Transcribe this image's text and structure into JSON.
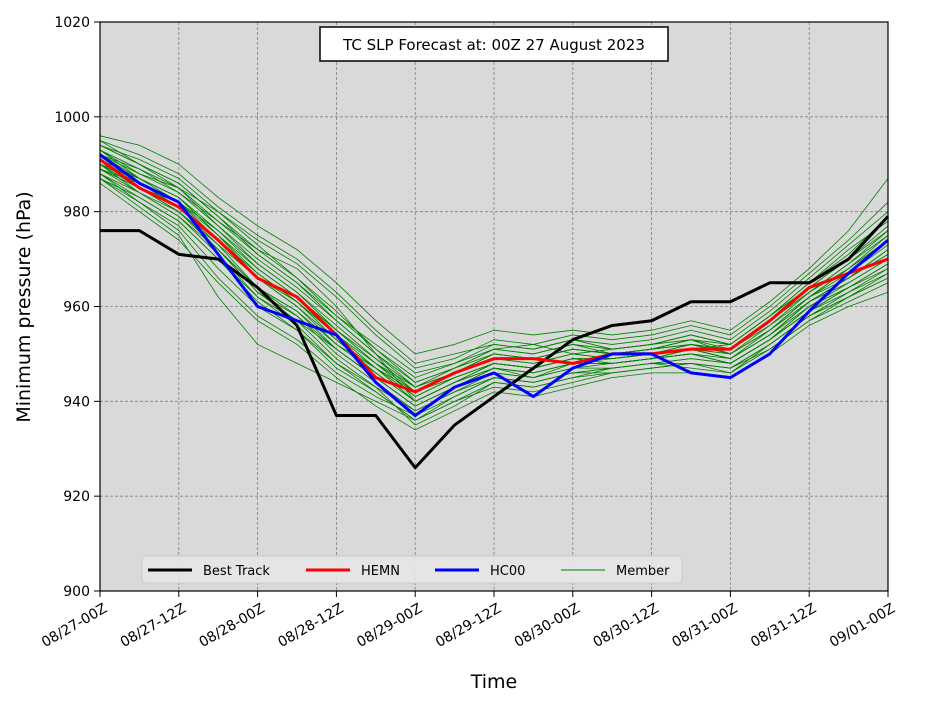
{
  "chart_data": {
    "type": "line",
    "title": "TC SLP Forecast at: 00Z 27 August 2023",
    "xlabel": "Time",
    "ylabel": "Minimum pressure (hPa)",
    "x_ticks": [
      "08/27-00Z",
      "08/27-12Z",
      "08/28-00Z",
      "08/28-12Z",
      "08/29-00Z",
      "08/29-12Z",
      "08/30-00Z",
      "08/30-12Z",
      "08/31-00Z",
      "08/31-12Z",
      "09/01-00Z"
    ],
    "x_step_hours": 6,
    "xlim": [
      0,
      20
    ],
    "ylim": [
      900,
      1020
    ],
    "y_ticks": [
      900,
      920,
      940,
      960,
      980,
      1000,
      1020
    ],
    "grid": true,
    "background": "#d9d9d9",
    "legend_position": "bottom-left",
    "series": [
      {
        "name": "Best Track",
        "color": "#000000",
        "width": 3,
        "values": [
          976,
          976,
          971,
          970,
          964,
          956,
          937,
          937,
          926,
          935,
          941,
          947,
          953,
          956,
          957,
          961,
          961,
          965,
          965,
          970,
          979
        ]
      },
      {
        "name": "HEMN",
        "color": "#ff0000",
        "width": 3,
        "values": [
          991,
          985,
          981,
          974,
          966,
          962,
          954,
          945,
          942,
          946,
          949,
          949,
          948,
          950,
          950,
          951,
          951,
          957,
          964,
          967,
          970
        ]
      },
      {
        "name": "HC00",
        "color": "#0000ff",
        "width": 3,
        "values": [
          992,
          986,
          982,
          971,
          960,
          957,
          954,
          944,
          937,
          943,
          946,
          941,
          947,
          950,
          950,
          946,
          945,
          950,
          959,
          967,
          974
        ]
      }
    ],
    "member_legend": {
      "name": "Member",
      "color": "#008000",
      "width": 1
    },
    "members": [
      [
        994,
        990,
        985,
        978,
        972,
        968,
        960,
        950,
        940,
        944,
        947,
        945,
        948,
        949,
        950,
        951,
        952,
        958,
        964,
        970,
        976
      ],
      [
        990,
        987,
        983,
        975,
        968,
        962,
        955,
        948,
        943,
        946,
        950,
        949,
        951,
        950,
        951,
        953,
        950,
        955,
        962,
        966,
        972
      ],
      [
        988,
        984,
        979,
        972,
        964,
        958,
        950,
        944,
        938,
        942,
        945,
        944,
        946,
        947,
        948,
        949,
        948,
        953,
        960,
        964,
        968
      ],
      [
        992,
        988,
        985,
        980,
        973,
        966,
        958,
        952,
        946,
        948,
        951,
        952,
        950,
        951,
        952,
        954,
        952,
        958,
        965,
        972,
        978
      ],
      [
        987,
        982,
        977,
        968,
        960,
        955,
        948,
        942,
        936,
        940,
        943,
        942,
        944,
        946,
        947,
        948,
        947,
        951,
        957,
        961,
        965
      ],
      [
        995,
        992,
        988,
        981,
        975,
        970,
        963,
        955,
        948,
        950,
        952,
        951,
        953,
        952,
        953,
        955,
        953,
        959,
        966,
        973,
        980
      ],
      [
        989,
        986,
        981,
        974,
        967,
        961,
        954,
        947,
        941,
        945,
        948,
        947,
        949,
        948,
        949,
        951,
        949,
        954,
        961,
        965,
        970
      ],
      [
        991,
        985,
        980,
        972,
        963,
        957,
        949,
        943,
        935,
        939,
        944,
        943,
        945,
        947,
        948,
        947,
        946,
        952,
        958,
        963,
        967
      ],
      [
        993,
        989,
        984,
        977,
        970,
        964,
        957,
        950,
        944,
        947,
        951,
        950,
        952,
        950,
        951,
        952,
        951,
        957,
        963,
        969,
        975
      ],
      [
        986,
        980,
        974,
        965,
        957,
        952,
        945,
        939,
        934,
        938,
        942,
        941,
        943,
        945,
        946,
        946,
        945,
        950,
        956,
        960,
        963
      ],
      [
        994,
        991,
        987,
        980,
        974,
        969,
        962,
        954,
        947,
        949,
        953,
        952,
        954,
        953,
        954,
        956,
        954,
        960,
        967,
        974,
        982
      ],
      [
        990,
        985,
        982,
        976,
        969,
        963,
        956,
        949,
        942,
        946,
        949,
        948,
        950,
        949,
        950,
        952,
        950,
        955,
        962,
        967,
        973
      ],
      [
        988,
        983,
        978,
        970,
        962,
        957,
        951,
        945,
        939,
        943,
        946,
        945,
        947,
        948,
        949,
        950,
        948,
        953,
        959,
        964,
        969
      ],
      [
        992,
        987,
        983,
        975,
        966,
        960,
        953,
        946,
        940,
        944,
        948,
        947,
        949,
        949,
        950,
        951,
        950,
        956,
        962,
        968,
        974
      ],
      [
        989,
        985,
        980,
        973,
        966,
        960,
        952,
        946,
        940,
        944,
        947,
        946,
        948,
        948,
        949,
        950,
        949,
        954,
        960,
        965,
        970
      ],
      [
        996,
        994,
        990,
        983,
        977,
        972,
        965,
        957,
        950,
        952,
        955,
        954,
        955,
        954,
        955,
        957,
        955,
        961,
        968,
        976,
        987
      ],
      [
        987,
        981,
        975,
        962,
        952,
        948,
        944,
        940,
        936,
        940,
        944,
        943,
        945,
        946,
        947,
        948,
        946,
        951,
        957,
        962,
        966
      ],
      [
        993,
        988,
        984,
        978,
        971,
        965,
        958,
        951,
        945,
        948,
        952,
        951,
        953,
        951,
        952,
        953,
        952,
        958,
        964,
        970,
        977
      ],
      [
        991,
        986,
        981,
        973,
        964,
        959,
        952,
        947,
        942,
        945,
        948,
        947,
        949,
        949,
        950,
        951,
        949,
        954,
        961,
        966,
        971
      ],
      [
        990,
        984,
        979,
        971,
        962,
        956,
        948,
        943,
        938,
        942,
        946,
        945,
        947,
        947,
        948,
        949,
        948,
        953,
        959,
        963,
        968
      ],
      [
        994,
        990,
        986,
        979,
        972,
        966,
        959,
        951,
        944,
        947,
        950,
        949,
        951,
        950,
        951,
        953,
        951,
        956,
        963,
        969,
        976
      ],
      [
        988,
        982,
        976,
        966,
        958,
        953,
        946,
        941,
        937,
        941,
        945,
        944,
        946,
        947,
        948,
        948,
        947,
        952,
        958,
        962,
        966
      ],
      [
        992,
        989,
        985,
        977,
        969,
        963,
        955,
        948,
        942,
        946,
        949,
        948,
        950,
        949,
        950,
        952,
        950,
        955,
        962,
        968,
        974
      ],
      [
        989,
        984,
        980,
        972,
        963,
        958,
        951,
        945,
        939,
        943,
        947,
        946,
        948,
        948,
        949,
        950,
        948,
        953,
        960,
        964,
        969
      ],
      [
        993,
        987,
        983,
        976,
        968,
        962,
        955,
        949,
        943,
        946,
        950,
        949,
        951,
        950,
        951,
        952,
        951,
        957,
        963,
        968,
        975
      ],
      [
        990,
        986,
        982,
        974,
        966,
        961,
        954,
        948,
        941,
        945,
        948,
        947,
        949,
        948,
        949,
        951,
        949,
        954,
        961,
        966,
        972
      ],
      [
        987,
        983,
        978,
        970,
        961,
        955,
        947,
        942,
        936,
        941,
        945,
        944,
        946,
        946,
        947,
        948,
        947,
        952,
        958,
        962,
        967
      ],
      [
        995,
        990,
        986,
        979,
        971,
        965,
        957,
        950,
        943,
        947,
        951,
        950,
        952,
        951,
        952,
        954,
        952,
        958,
        965,
        971,
        979
      ],
      [
        991,
        987,
        982,
        975,
        967,
        961,
        953,
        947,
        940,
        944,
        948,
        947,
        949,
        948,
        949,
        951,
        949,
        955,
        961,
        966,
        971
      ],
      [
        989,
        985,
        980,
        972,
        964,
        959,
        951,
        945,
        939,
        943,
        947,
        946,
        948,
        948,
        949,
        950,
        948,
        953,
        959,
        964,
        969
      ]
    ]
  }
}
